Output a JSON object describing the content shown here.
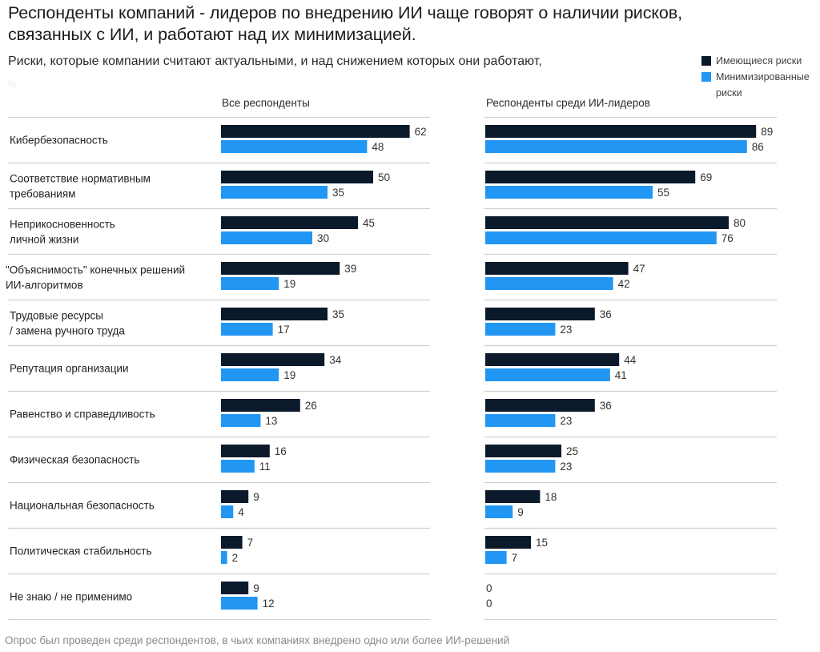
{
  "header": {
    "title": "Респонденты компаний - лидеров по внедрению ИИ чаще говорят о наличии рисков, связанных с ИИ, и работают над их минимизацией.",
    "subtitle": "Риски, которые компании считают актуальными, и над снижением которых они работают,",
    "unit": "%"
  },
  "legend": {
    "items": [
      {
        "label": "Имеющиеся риски",
        "color": "#0b1a2b"
      },
      {
        "label": "Минимизированные риски",
        "color": "#2196f3"
      }
    ]
  },
  "footer": "Опрос был проведен среди респондентов, в чьих компаниях внедрено одно или более ИИ-решений",
  "chart_data": {
    "type": "bar",
    "orientation": "horizontal",
    "title": "Респонденты компаний - лидеров по внедрению ИИ чаще говорят о наличии рисков, связанных с ИИ, и работают над их минимизацией.",
    "subtitle": "Риски, которые компании считают актуальными, и над снижением которых они работают, %",
    "categories": [
      "Кибербезопасность",
      "Соответствие нормативным\nтребованиям",
      "Неприкосновенность\nличной жизни",
      "\"Объяснимость\" конечных решений\nИИ-алгоритмов",
      "Трудовые ресурсы\n/ замена ручного труда",
      "Репутация организации",
      "Равенство и справедливость",
      "Физическая безопасность",
      "Национальная безопасность",
      "Политическая стабильность",
      "Не знаю / не применимо"
    ],
    "panels": [
      {
        "name": "Все респонденты",
        "series": [
          {
            "name": "Имеющиеся риски",
            "color": "#0b1a2b",
            "values": [
              62,
              50,
              45,
              39,
              35,
              34,
              26,
              16,
              9,
              7,
              9
            ]
          },
          {
            "name": "Минимизированные риски",
            "color": "#2196f3",
            "values": [
              48,
              35,
              30,
              19,
              17,
              19,
              13,
              11,
              4,
              2,
              12
            ]
          }
        ]
      },
      {
        "name": "Респонденты среди ИИ-лидеров",
        "series": [
          {
            "name": "Имеющиеся риски",
            "color": "#0b1a2b",
            "values": [
              89,
              69,
              80,
              47,
              36,
              44,
              36,
              25,
              18,
              15,
              0
            ]
          },
          {
            "name": "Минимизированные риски",
            "color": "#2196f3",
            "values": [
              86,
              55,
              76,
              42,
              23,
              41,
              23,
              23,
              9,
              7,
              0
            ]
          }
        ]
      }
    ],
    "xlim": [
      0,
      100
    ],
    "grid": false,
    "legend_position": "top-right",
    "xlabel": "",
    "ylabel": ""
  }
}
